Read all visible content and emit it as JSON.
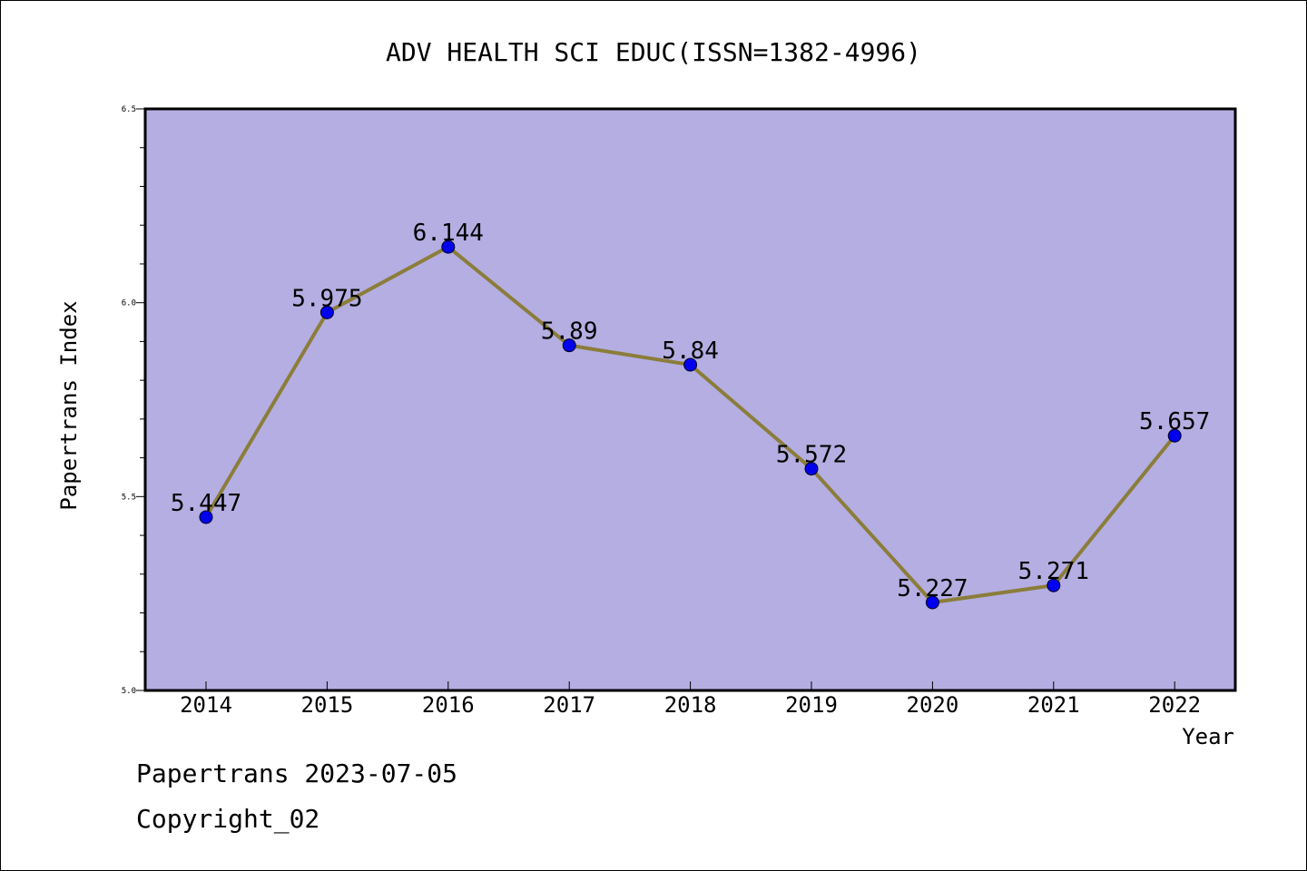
{
  "chart_data": {
    "type": "line",
    "title": "ADV HEALTH SCI EDUC(ISSN=1382-4996)",
    "xlabel": "Year",
    "ylabel": "Papertrans Index",
    "categories": [
      "2014",
      "2015",
      "2016",
      "2017",
      "2018",
      "2019",
      "2020",
      "2021",
      "2022"
    ],
    "values": [
      5.447,
      5.975,
      6.144,
      5.89,
      5.84,
      5.572,
      5.227,
      5.271,
      5.657
    ],
    "data_labels": [
      "5.447",
      "5.975",
      "6.144",
      "5.89",
      "5.84",
      "5.572",
      "5.227",
      "5.271",
      "5.657"
    ],
    "ylim": [
      5.0,
      6.5
    ],
    "yticks": [
      "5.0",
      "5.5",
      "6.0",
      "6.5"
    ],
    "grid": false,
    "colors": {
      "plot_background": "#b4aee2",
      "line": "#8b7d3a",
      "marker": "#0000ee"
    }
  },
  "footer": {
    "line1": "Papertrans 2023-07-05",
    "line2": "Copyright_02"
  }
}
